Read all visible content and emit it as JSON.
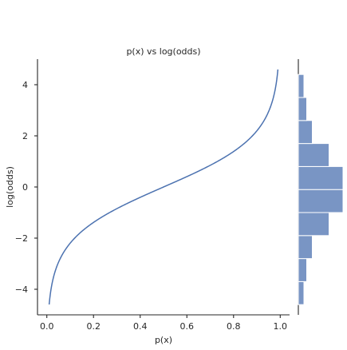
{
  "chart_data": [
    {
      "type": "line",
      "title": "p(x) vs log(odds)",
      "xlabel": "p(x)",
      "ylabel": "log(odds)",
      "xlim": [
        -0.04,
        1.04
      ],
      "ylim": [
        -5.0,
        5.0
      ],
      "xticks": [
        0.0,
        0.2,
        0.4,
        0.6,
        0.8,
        1.0
      ],
      "xtick_labels": [
        "0.0",
        "0.2",
        "0.4",
        "0.6",
        "0.8",
        "1.0"
      ],
      "yticks": [
        -4,
        -2,
        0,
        2,
        4
      ],
      "ytick_labels": [
        "−4",
        "−2",
        "0",
        "2",
        "4"
      ],
      "grid": false,
      "series": [
        {
          "function": "logit",
          "x_range": [
            0.01,
            0.99
          ],
          "color": "#4c72b0"
        }
      ]
    },
    {
      "type": "bar",
      "orientation": "horizontal",
      "role": "marginal histogram of log(odds)",
      "bins": [
        {
          "y_start": -4.6,
          "y_end": -3.7,
          "count": 2
        },
        {
          "y_start": -3.7,
          "y_end": -2.8,
          "count": 3
        },
        {
          "y_start": -2.8,
          "y_end": -1.9,
          "count": 5
        },
        {
          "y_start": -1.9,
          "y_end": -1.0,
          "count": 11
        },
        {
          "y_start": -1.0,
          "y_end": -0.1,
          "count": 16
        },
        {
          "y_start": -0.1,
          "y_end": 0.8,
          "count": 16
        },
        {
          "y_start": 0.8,
          "y_end": 1.7,
          "count": 11
        },
        {
          "y_start": 1.7,
          "y_end": 2.6,
          "count": 5
        },
        {
          "y_start": 2.6,
          "y_end": 3.5,
          "count": 3
        },
        {
          "y_start": 3.5,
          "y_end": 4.4,
          "count": 2
        }
      ],
      "count_max": 16,
      "color": "#4c72b0"
    }
  ]
}
